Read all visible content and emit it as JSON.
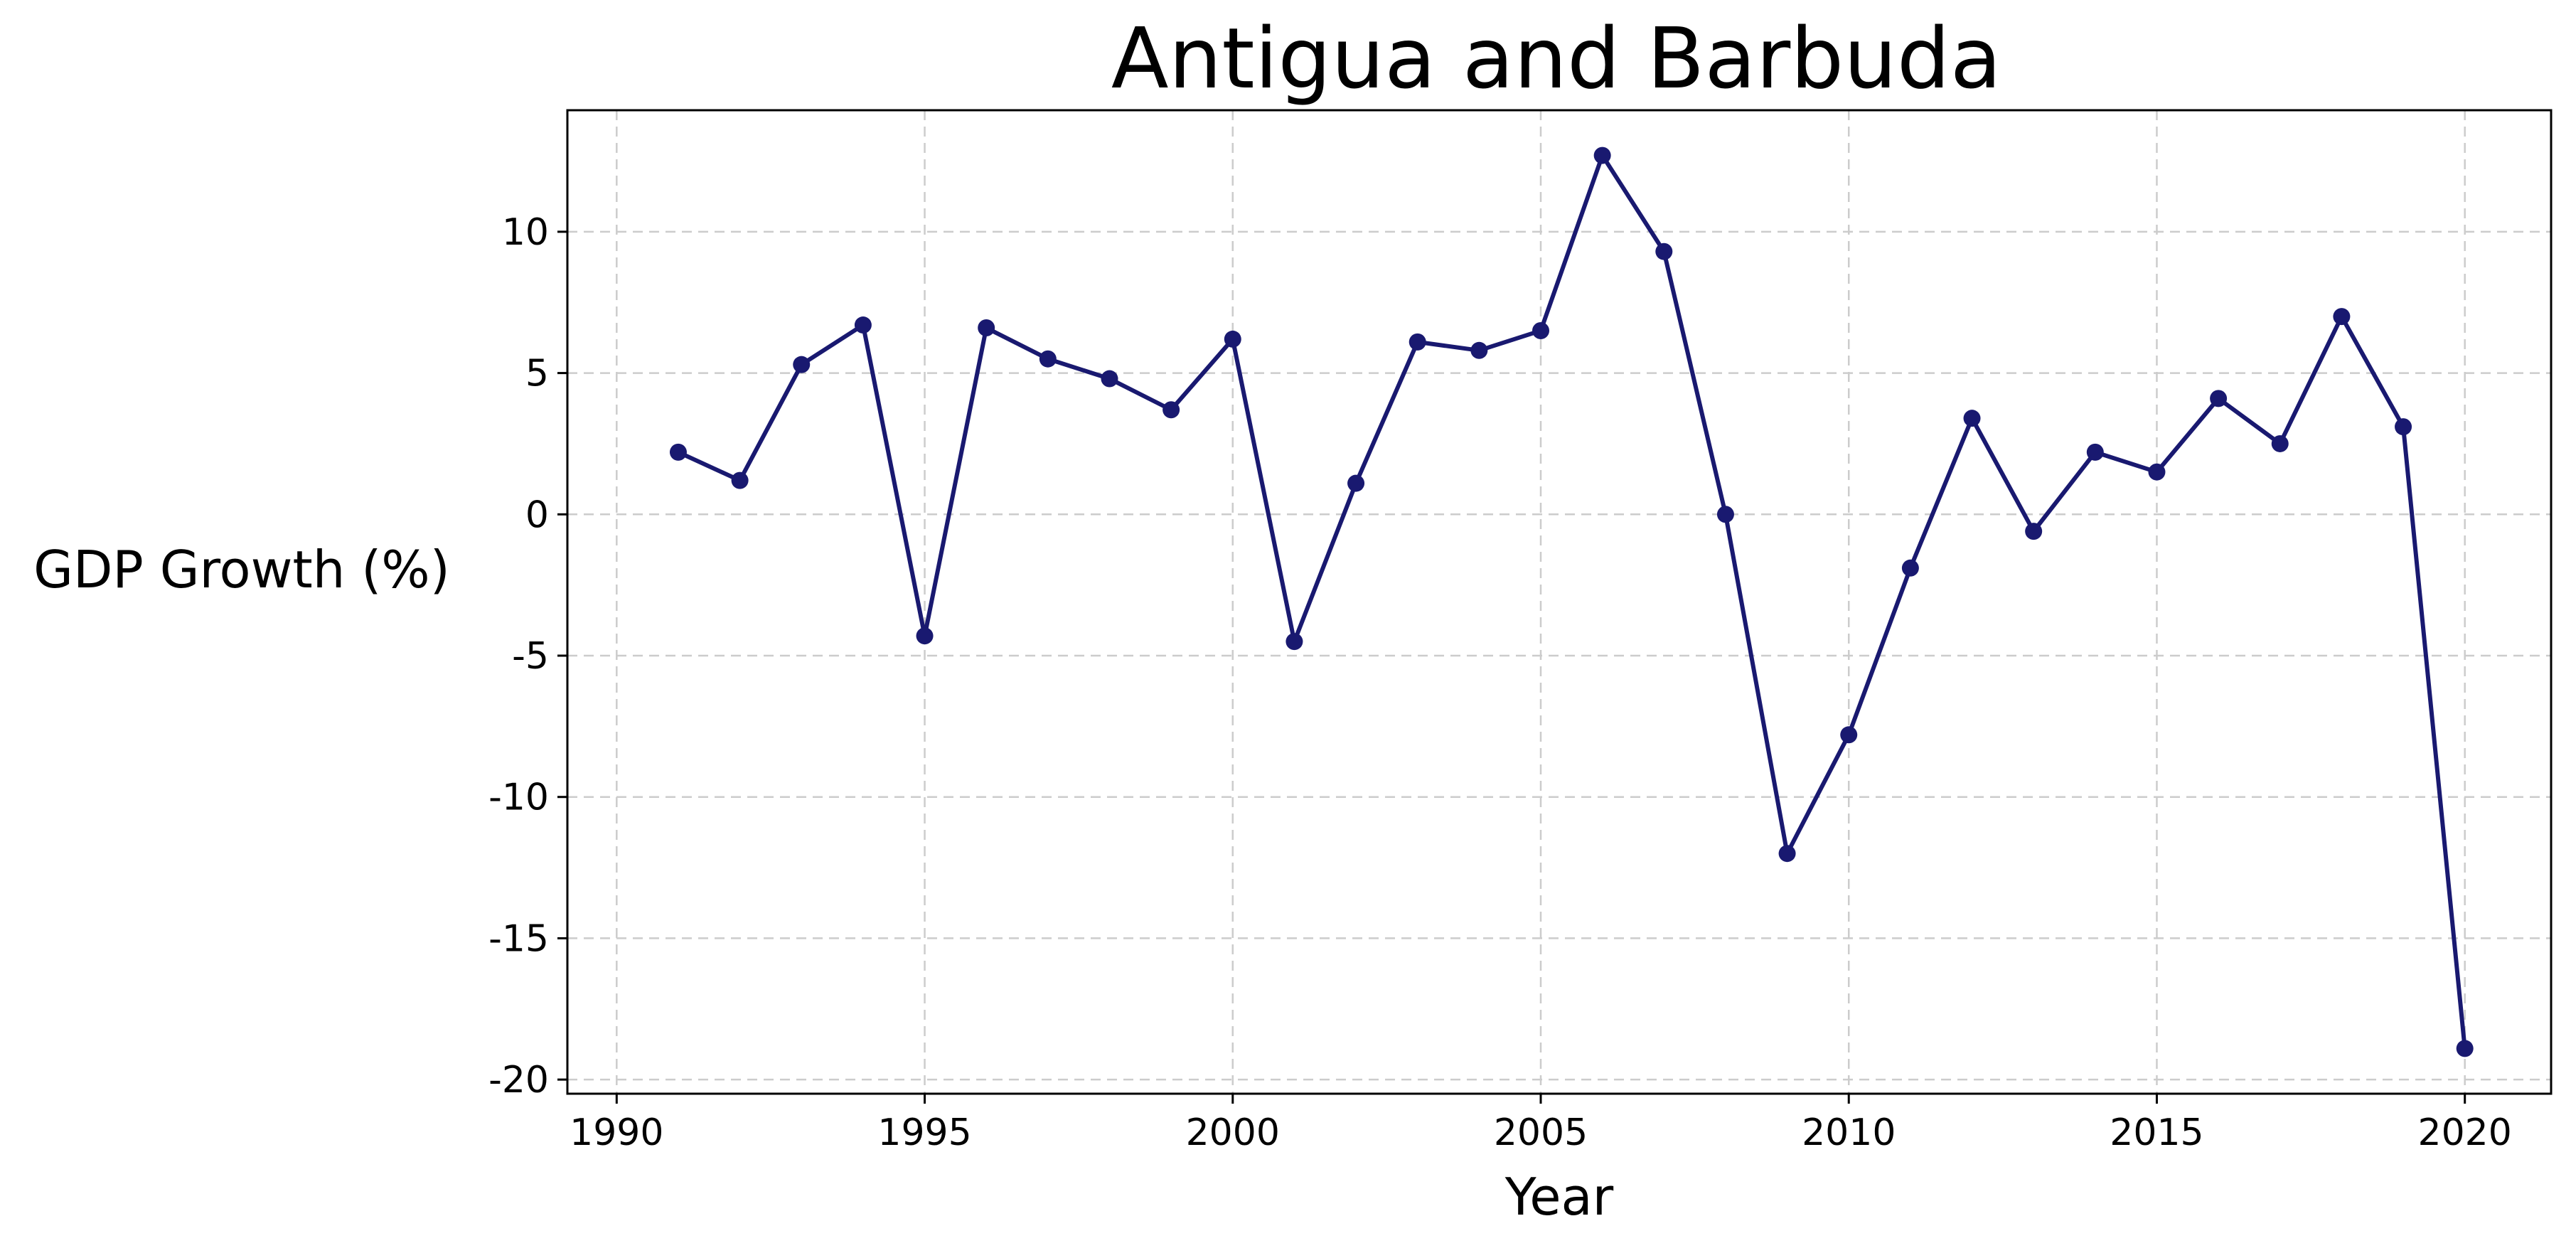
{
  "chart_data": {
    "type": "line",
    "title": "Antigua and Barbuda",
    "xlabel": "Year",
    "ylabel": "GDP Growth (%)",
    "xlim": [
      1989.2,
      2021.4
    ],
    "ylim": [
      -20.5,
      14.3
    ],
    "xticks": [
      1990,
      1995,
      2000,
      2005,
      2010,
      2015,
      2020
    ],
    "yticks": [
      -20,
      -15,
      -10,
      -5,
      0,
      5,
      10
    ],
    "grid": true,
    "legend": "none",
    "x": [
      1991,
      1992,
      1993,
      1994,
      1995,
      1996,
      1997,
      1998,
      1999,
      2000,
      2001,
      2002,
      2003,
      2004,
      2005,
      2006,
      2007,
      2008,
      2009,
      2010,
      2011,
      2012,
      2013,
      2014,
      2015,
      2016,
      2017,
      2018,
      2019,
      2020
    ],
    "series": [
      {
        "color": "#191970",
        "values": [
          2.2,
          1.2,
          5.3,
          6.7,
          -4.3,
          6.6,
          5.5,
          4.8,
          3.7,
          6.2,
          -4.5,
          1.1,
          6.1,
          5.8,
          6.5,
          12.7,
          9.3,
          0.0,
          -12.0,
          -7.8,
          -1.9,
          3.4,
          -0.6,
          2.2,
          1.5,
          4.1,
          2.5,
          7.0,
          3.1,
          -18.9
        ]
      }
    ]
  }
}
